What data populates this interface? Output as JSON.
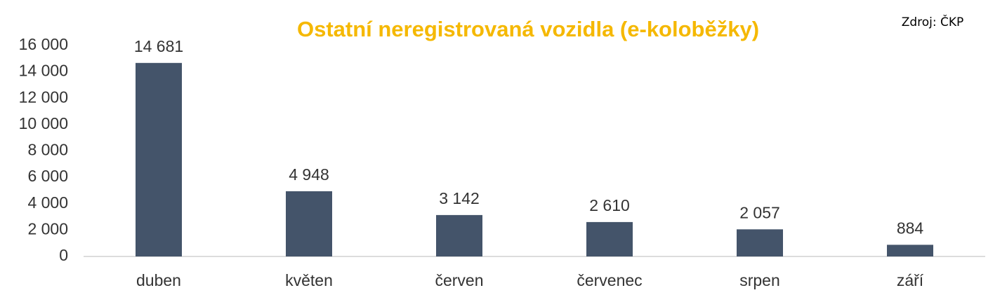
{
  "chart_data": {
    "type": "bar",
    "title": "Ostatní neregistrovaná vozidla (e-koloběžky)",
    "source": "Zdroj: ČKP",
    "categories": [
      "duben",
      "květen",
      "červen",
      "červenec",
      "srpen",
      "září"
    ],
    "values": [
      14681,
      4948,
      3142,
      2610,
      2057,
      884
    ],
    "value_labels": [
      "14 681",
      "4 948",
      "3 142",
      "2 610",
      "2 057",
      "884"
    ],
    "color": "#44546a",
    "title_color": "#f5b800",
    "ylim": [
      0,
      16000
    ],
    "yticks": [
      0,
      {
        "value": 2000,
        "label": "2 000"
      },
      {
        "value": 4000,
        "label": "4 000"
      },
      {
        "value": 6000,
        "label": "6 000"
      },
      {
        "value": 8000,
        "label": "8 000"
      },
      {
        "value": 10000,
        "label": "10 000"
      },
      {
        "value": 12000,
        "label": "12 000"
      },
      {
        "value": 14000,
        "label": "14 000"
      },
      {
        "value": 16000,
        "label": "16 000"
      }
    ],
    "grid": false
  }
}
